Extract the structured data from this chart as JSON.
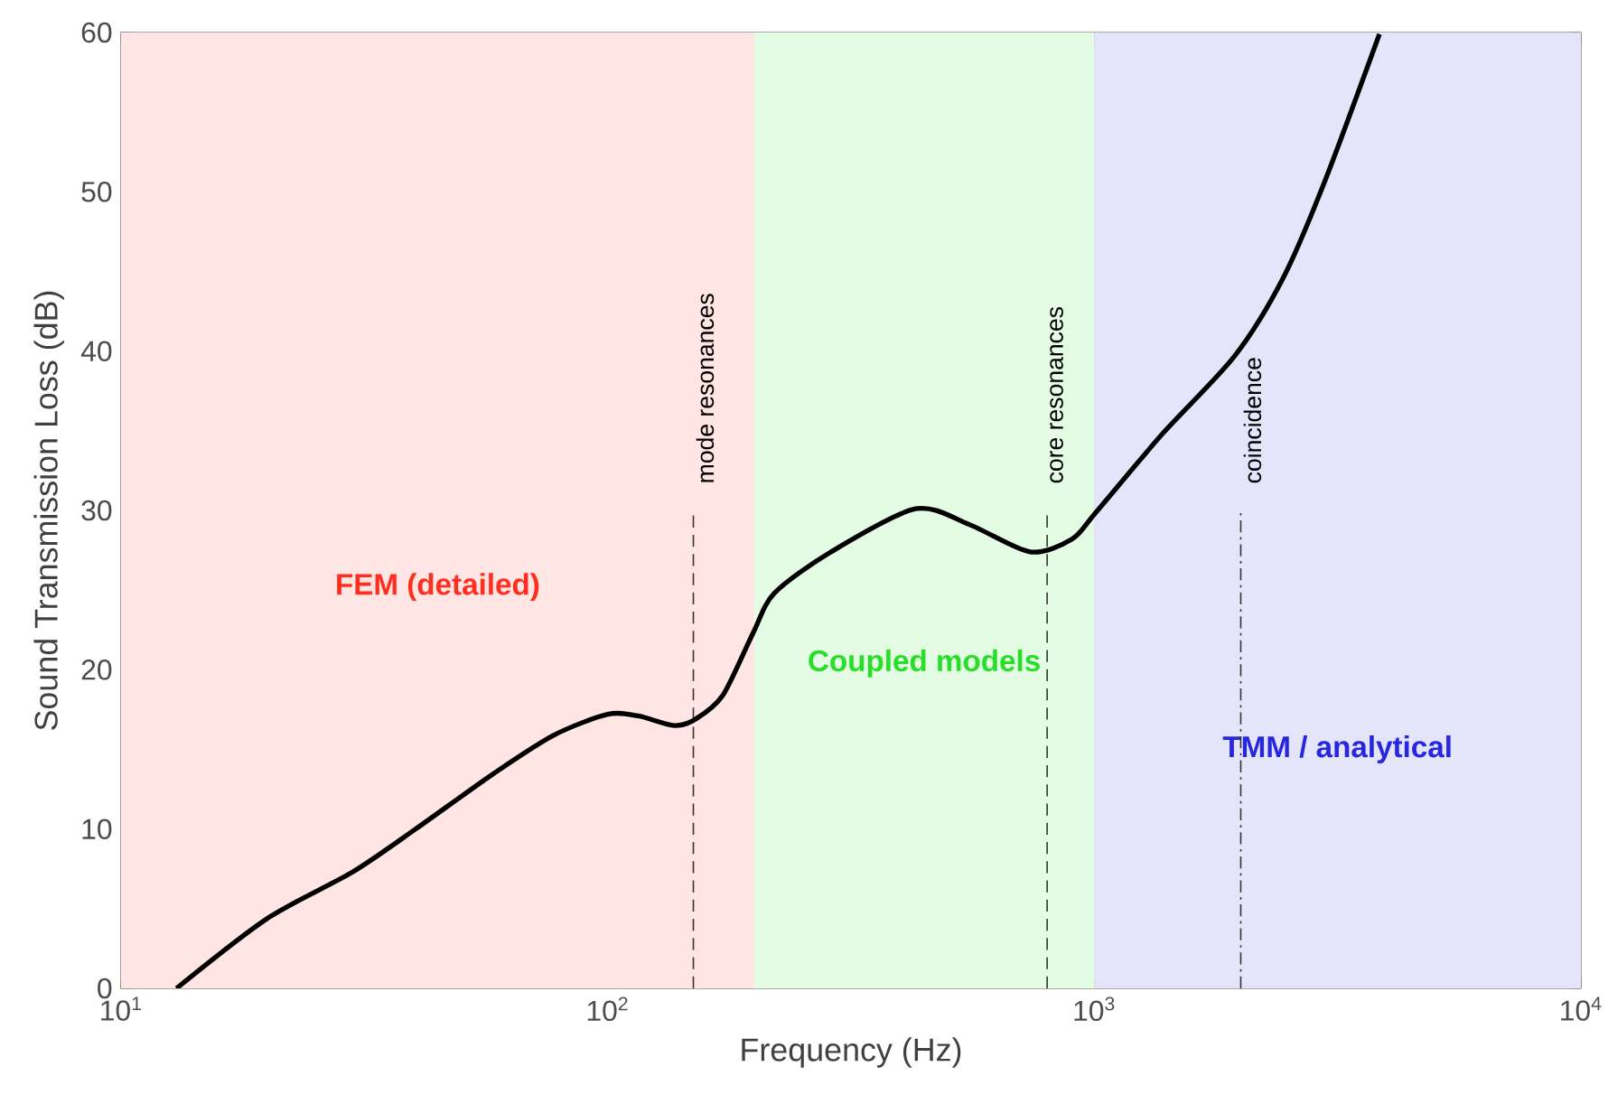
{
  "chart_data": {
    "type": "line",
    "xlabel": "Frequency (Hz)",
    "ylabel": "Sound Transmission Loss (dB)",
    "log": "x",
    "grid": true,
    "xlim": [
      10,
      10000
    ],
    "ylim": [
      0,
      60
    ],
    "xticks": [
      {
        "value": 10,
        "label": "10$^{1}$"
      },
      {
        "value": 100,
        "label": "10$^{2}$"
      },
      {
        "value": 1000,
        "label": "10$^{3}$"
      },
      {
        "value": 10000,
        "label": "10$^{4}$"
      }
    ],
    "yticks": [
      0,
      10,
      20,
      30,
      40,
      50,
      60
    ],
    "series": [
      {
        "color": "#000000",
        "x": [
          13,
          20,
          29.9,
          40.3,
          58.4,
          77.6,
          100,
          115.5,
          137,
          151.6,
          172.5,
          199,
          220,
          288,
          429,
          555,
          738,
          900,
          1009,
          1380,
          1944,
          2445,
          2980,
          3855
        ],
        "values": [
          0,
          4.4,
          7.3,
          10.0,
          13.5,
          15.9,
          17.2,
          17.1,
          16.5,
          16.9,
          18.4,
          22.3,
          24.8,
          27.4,
          30.1,
          29.1,
          27.4,
          28.2,
          29.9,
          34.8,
          39.7,
          44.6,
          50.7,
          59.9
        ]
      }
    ],
    "bands": [
      {
        "axis": "x",
        "from": 10,
        "to": 200,
        "color": "#ffe5e3",
        "label": "FEM (detailed)"
      },
      {
        "axis": "x",
        "from": 200,
        "to": 1000,
        "color": "#e4fbe4",
        "label": "Coupled models"
      },
      {
        "axis": "x",
        "from": 1000,
        "to": 10000,
        "color": "#e4e4fb",
        "label": "TMM / analytical"
      }
    ],
    "ref_lines": [
      {
        "axis": "x",
        "value": 150,
        "label": "mode resonances",
        "line_style": "dashed"
      },
      {
        "axis": "x",
        "value": 800,
        "label": "core resonances",
        "line_style": "dashed"
      },
      {
        "axis": "x",
        "value": 2000,
        "label": "coincidence",
        "line_style": "dashdot"
      }
    ]
  }
}
